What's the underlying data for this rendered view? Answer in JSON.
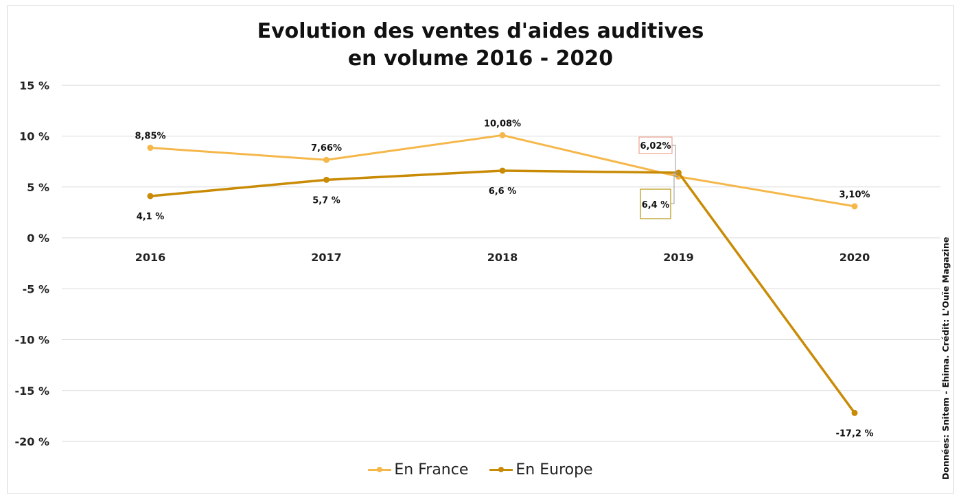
{
  "chart_data": {
    "type": "line",
    "title_lines": [
      "Evolution des ventes d'aides auditives",
      "en volume 2016 - 2020"
    ],
    "x": [
      "2016",
      "2017",
      "2018",
      "2019",
      "2020"
    ],
    "ylim": [
      -20,
      15
    ],
    "yticks": [
      15,
      10,
      5,
      0,
      -5,
      -10,
      -15,
      -20
    ],
    "ytick_labels": [
      "15 %",
      "10 %",
      "5 %",
      "0 %",
      "-5 %",
      "-10 %",
      "-15 %",
      "-20 %"
    ],
    "grid": true,
    "legend_position": "bottom",
    "series": [
      {
        "name": "En France",
        "color": "#f5b74a",
        "values": [
          8.85,
          7.66,
          10.08,
          6.02,
          3.1
        ],
        "labels": [
          "8,85%",
          "7,66%",
          "10,08%",
          "6,02%",
          "3,10%"
        ]
      },
      {
        "name": "En Europe",
        "color": "#c98b06",
        "values": [
          4.1,
          5.7,
          6.6,
          6.4,
          -17.2
        ],
        "labels": [
          "4,1 %",
          "5,7 %",
          "6,6 %",
          "6,4 %",
          "-17,2 %"
        ]
      }
    ]
  },
  "source_text": "Données: Snitem - Ehima. Crédit: L'Ouïe Magazine"
}
